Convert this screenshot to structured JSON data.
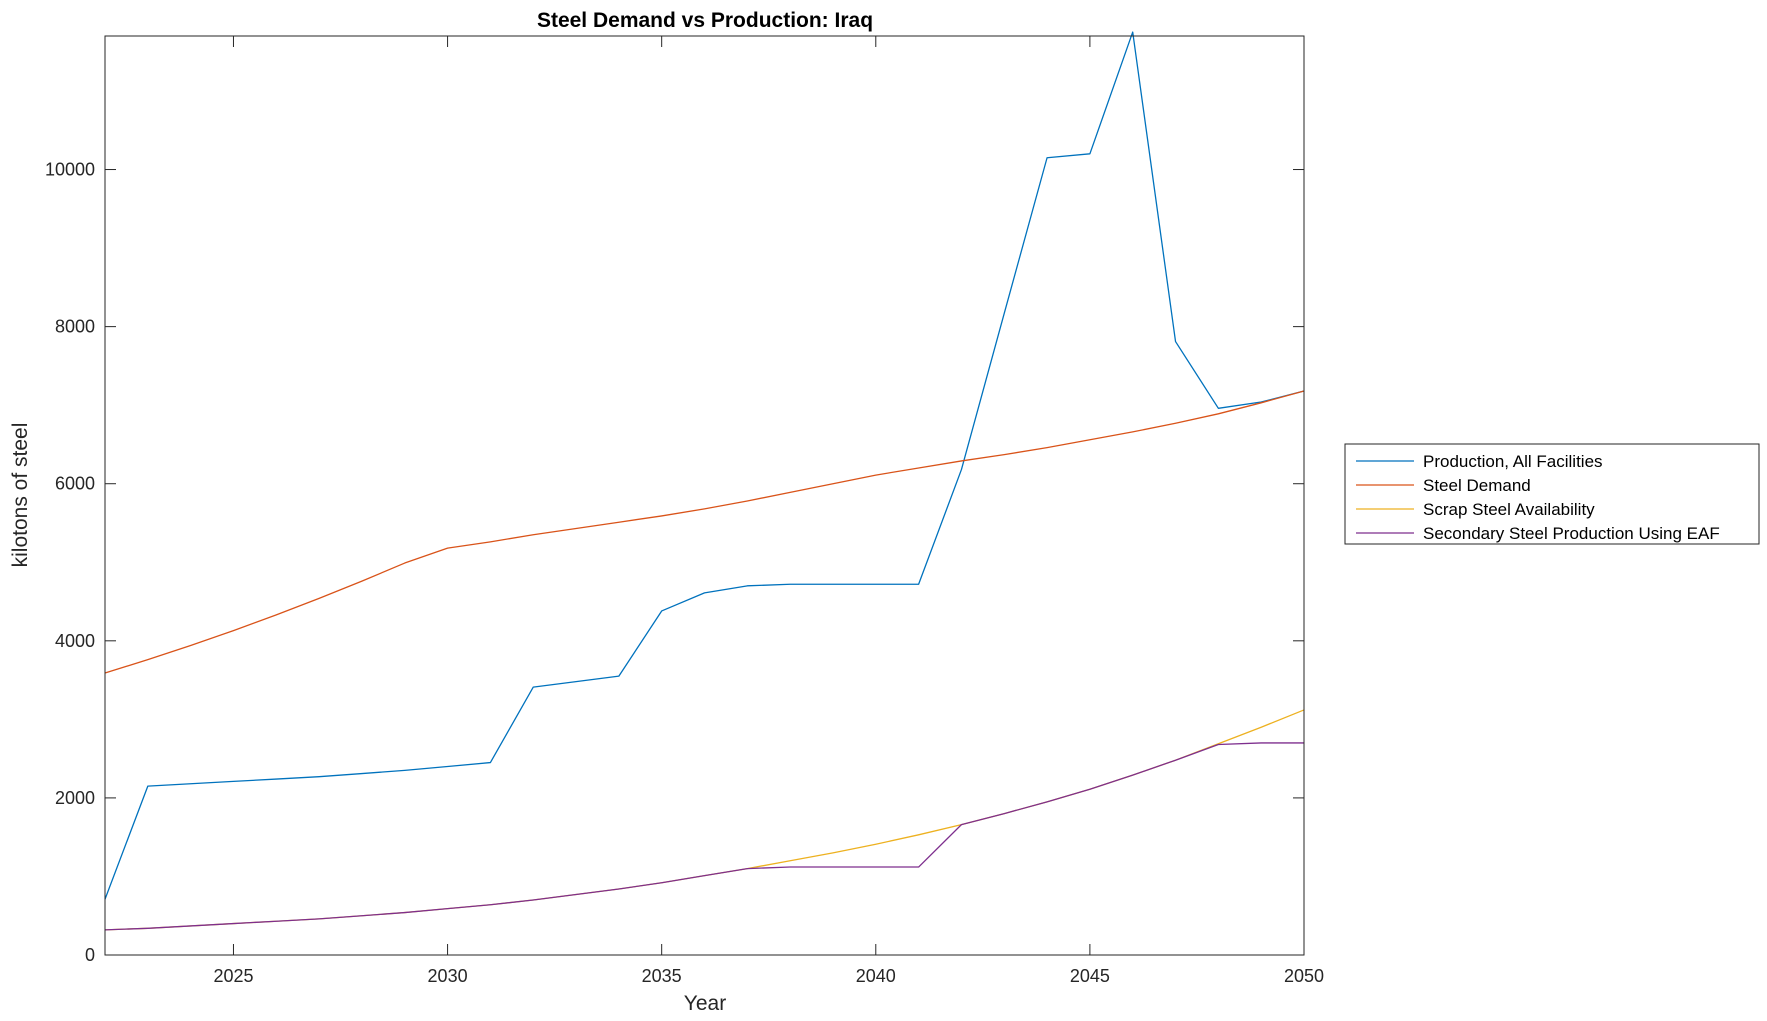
{
  "chart_data": {
    "type": "line",
    "title": "Steel Demand vs Production: Iraq",
    "xlabel": "Year",
    "ylabel": "kilotons of steel",
    "xlim": [
      2022,
      2050
    ],
    "ylim": [
      0,
      11700
    ],
    "xticks": [
      2025,
      2030,
      2035,
      2040,
      2045,
      2050
    ],
    "yticks": [
      0,
      2000,
      4000,
      6000,
      8000,
      10000
    ],
    "grid": false,
    "legend_position": "outside-right",
    "x": [
      2022,
      2023,
      2024,
      2025,
      2026,
      2027,
      2028,
      2029,
      2030,
      2031,
      2032,
      2033,
      2034,
      2035,
      2036,
      2037,
      2038,
      2039,
      2040,
      2041,
      2042,
      2043,
      2044,
      2045,
      2046,
      2047,
      2048,
      2049,
      2050
    ],
    "series": [
      {
        "name": "Production, All Facilities",
        "color": "#0072BD",
        "values": [
          710,
          2150,
          2180,
          2210,
          2240,
          2270,
          2310,
          2350,
          2400,
          2450,
          3410,
          3480,
          3550,
          4380,
          4610,
          4700,
          4720,
          4720,
          4720,
          4720,
          6180,
          8170,
          10150,
          10200,
          11750,
          7810,
          6960,
          7040,
          7180
        ]
      },
      {
        "name": "Steel Demand",
        "color": "#D95319",
        "values": [
          3590,
          3760,
          3940,
          4130,
          4330,
          4540,
          4760,
          4990,
          5180,
          5260,
          5350,
          5430,
          5510,
          5590,
          5680,
          5780,
          5890,
          6000,
          6110,
          6200,
          6290,
          6370,
          6460,
          6560,
          6660,
          6770,
          6890,
          7030,
          7180
        ]
      },
      {
        "name": "Scrap Steel Availability",
        "color": "#EDB120",
        "values": [
          320,
          340,
          370,
          400,
          430,
          460,
          500,
          540,
          590,
          640,
          700,
          770,
          840,
          920,
          1010,
          1100,
          1200,
          1300,
          1410,
          1530,
          1660,
          1800,
          1950,
          2110,
          2290,
          2480,
          2690,
          2900,
          3120
        ]
      },
      {
        "name": "Secondary Steel Production Using EAF",
        "color": "#7E2F8E",
        "values": [
          320,
          340,
          370,
          400,
          430,
          460,
          500,
          540,
          590,
          640,
          700,
          770,
          840,
          920,
          1010,
          1100,
          1120,
          1120,
          1120,
          1120,
          1660,
          1800,
          1950,
          2110,
          2290,
          2480,
          2680,
          2700,
          2700
        ]
      }
    ]
  }
}
